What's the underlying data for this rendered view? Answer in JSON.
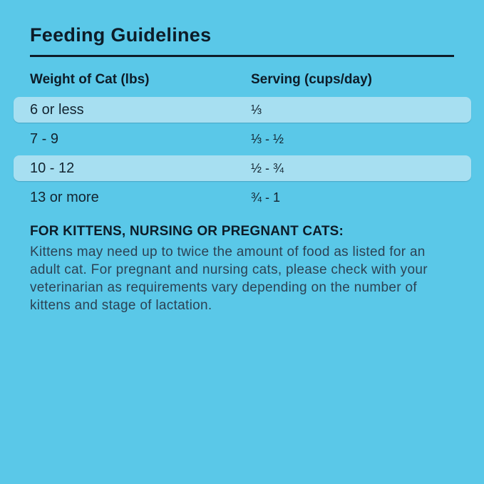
{
  "colors": {
    "bg": "#5AC8E8",
    "highlight": "#A7DFF1",
    "dark": "#0D1C28",
    "row-text": "#132430",
    "body-text": "#2C4254"
  },
  "title": "Feeding Guidelines",
  "table": {
    "columns": [
      "Weight of Cat (lbs)",
      "Serving (cups/day)"
    ],
    "rows": [
      {
        "weight": "6 or less",
        "serving": "⅓",
        "highlighted": true
      },
      {
        "weight": "7 - 9",
        "serving": "⅓ - ½",
        "highlighted": false
      },
      {
        "weight": "10 - 12",
        "serving": "½ - ¾",
        "highlighted": true
      },
      {
        "weight": "13 or more",
        "serving": "¾ - 1",
        "highlighted": false
      }
    ]
  },
  "note": {
    "heading": "FOR KITTENS, NURSING OR PREGNANT CATS:",
    "body": "Kittens may need up to twice the amount of food as listed for an adult cat. For pregnant and nursing cats, please check with your veterinarian as requirements vary depending on the number of kittens and stage of lactation."
  }
}
